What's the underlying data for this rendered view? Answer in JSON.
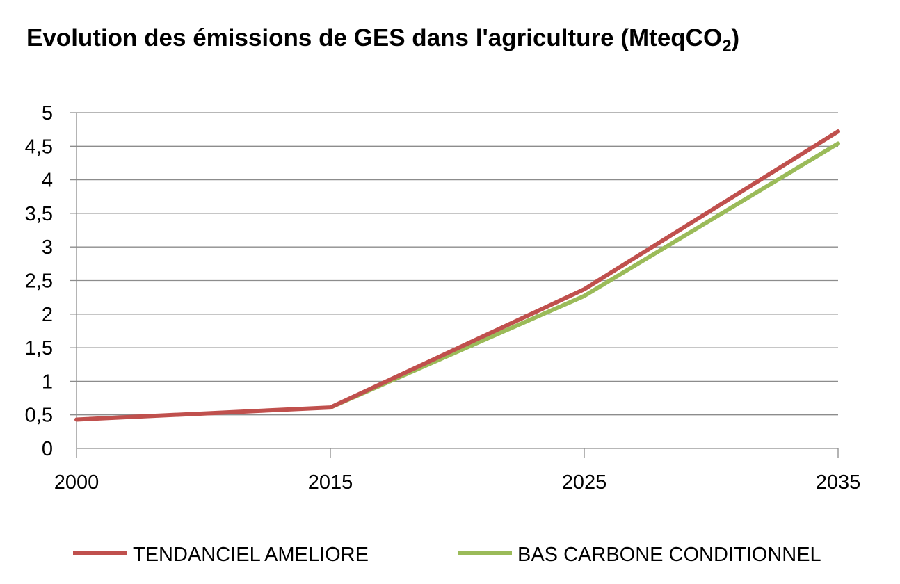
{
  "chart_data": {
    "type": "line",
    "title": "Evolution des émissions de GES dans l'agriculture (MteqCO",
    "title_subscript": "2",
    "title_close": ")",
    "categories": [
      "2000",
      "2015",
      "2025",
      "2035"
    ],
    "ylim": [
      0,
      5
    ],
    "ytick_labels": [
      "0",
      "0,5",
      "1",
      "1,5",
      "2",
      "2,5",
      "3",
      "3,5",
      "4",
      "4,5",
      "5"
    ],
    "grid": true,
    "legend_position": "bottom",
    "series": [
      {
        "name": "TENDANCIEL AMELIORE",
        "color": "#c0504d",
        "values": [
          0.43,
          0.61,
          2.37,
          4.72
        ]
      },
      {
        "name": "BAS CARBONE CONDITIONNEL",
        "color": "#9bbb59",
        "values": [
          null,
          0.61,
          2.27,
          4.54
        ]
      }
    ]
  }
}
